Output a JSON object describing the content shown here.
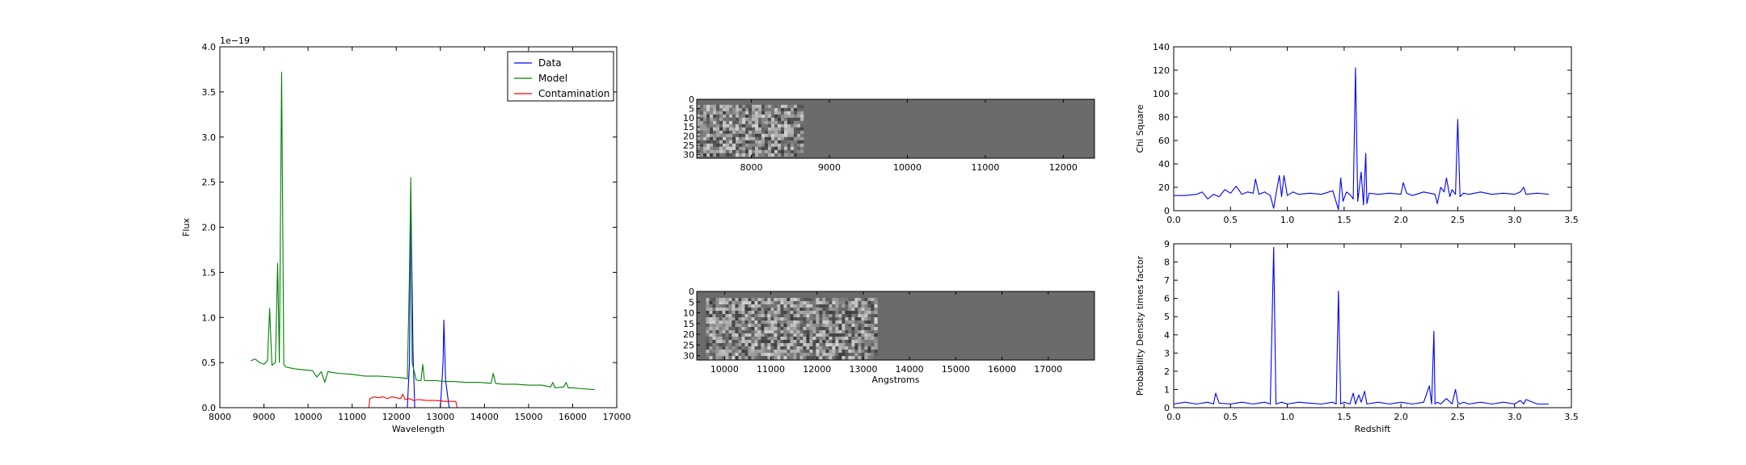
{
  "chart_data": [
    {
      "type": "line",
      "xlabel": "Wavelength",
      "ylabel": "Flux",
      "offset_text": "1e−19",
      "xlim": [
        8000,
        17000
      ],
      "ylim": [
        0,
        4.0
      ],
      "xticks": [
        "8000",
        "9000",
        "10000",
        "11000",
        "12000",
        "13000",
        "14000",
        "15000",
        "16000",
        "17000"
      ],
      "yticks": [
        "0.0",
        "0.5",
        "1.0",
        "1.5",
        "2.0",
        "2.5",
        "3.0",
        "3.5",
        "4.0"
      ],
      "legend": "top-right",
      "grid": false,
      "series": [
        {
          "name": "Data",
          "color": "#0000ff",
          "x": [
            8750,
            11000,
            12250,
            12300,
            12330,
            12380,
            12420,
            13000,
            13060,
            13080,
            13120,
            13200,
            16500
          ],
          "y": [
            0.0,
            0.0,
            0.0,
            0.5,
            2.4,
            0.6,
            0.0,
            0.0,
            0.5,
            0.97,
            0.3,
            0.0,
            0.0
          ]
        },
        {
          "name": "Model",
          "color": "#008000",
          "x": [
            8700,
            8800,
            8900,
            9000,
            9080,
            9130,
            9180,
            9260,
            9310,
            9350,
            9400,
            9450,
            9500,
            9700,
            9900,
            10100,
            10200,
            10300,
            10380,
            10450,
            10550,
            10700,
            11000,
            11300,
            11600,
            11900,
            12150,
            12250,
            12300,
            12330,
            12360,
            12450,
            12500,
            12560,
            12600,
            12640,
            12700,
            12900,
            13100,
            13300,
            13600,
            13900,
            14150,
            14200,
            14250,
            14400,
            14700,
            15000,
            15300,
            15500,
            15550,
            15600,
            15800,
            15850,
            15900,
            16000,
            16200,
            16500
          ],
          "y": [
            0.52,
            0.54,
            0.5,
            0.48,
            0.52,
            1.1,
            0.47,
            0.5,
            1.6,
            0.5,
            3.72,
            0.48,
            0.45,
            0.43,
            0.42,
            0.41,
            0.34,
            0.4,
            0.28,
            0.4,
            0.39,
            0.38,
            0.37,
            0.35,
            0.35,
            0.34,
            0.33,
            0.32,
            1.5,
            2.55,
            0.5,
            0.31,
            0.3,
            0.3,
            0.48,
            0.3,
            0.3,
            0.3,
            0.29,
            0.29,
            0.28,
            0.28,
            0.27,
            0.38,
            0.27,
            0.26,
            0.26,
            0.25,
            0.25,
            0.23,
            0.28,
            0.22,
            0.23,
            0.28,
            0.22,
            0.22,
            0.21,
            0.2
          ]
        },
        {
          "name": "Contamination",
          "color": "#ff0000",
          "x": [
            8750,
            11380,
            11400,
            11500,
            11600,
            11700,
            11800,
            11900,
            12000,
            12100,
            12150,
            12200,
            12300,
            12400,
            12500,
            12700,
            12900,
            13100,
            13200,
            13350,
            13380,
            16500
          ],
          "y": [
            0.0,
            0.0,
            0.1,
            0.12,
            0.11,
            0.12,
            0.1,
            0.12,
            0.11,
            0.1,
            0.15,
            0.09,
            0.1,
            0.08,
            0.09,
            0.08,
            0.08,
            0.07,
            0.07,
            0.07,
            0.0,
            0.0
          ]
        }
      ]
    },
    {
      "type": "heatmap",
      "xlabel": "",
      "ylabel": "",
      "xticks": [
        "8000",
        "9000",
        "10000",
        "11000",
        "12000"
      ],
      "yticks": [
        "0",
        "5",
        "10",
        "15",
        "20",
        "25",
        "30"
      ],
      "xlim": [
        7300,
        12400
      ],
      "ylim": [
        0,
        32
      ],
      "data_xrange": [
        7300,
        8650
      ],
      "background_gray": 0.42
    },
    {
      "type": "heatmap",
      "xlabel": "Angstroms",
      "ylabel": "",
      "xticks": [
        "10000",
        "11000",
        "12000",
        "13000",
        "14000",
        "15000",
        "16000",
        "17000"
      ],
      "yticks": [
        "0",
        "5",
        "10",
        "15",
        "20",
        "25",
        "30"
      ],
      "xlim": [
        9400,
        18000
      ],
      "ylim": [
        0,
        32
      ],
      "data_xrange": [
        9600,
        13300
      ],
      "background_gray": 0.42
    },
    {
      "type": "line",
      "xlabel": "",
      "ylabel": "Chi Square",
      "xlim": [
        0,
        3.5
      ],
      "ylim": [
        0,
        140
      ],
      "xticks": [
        "0.0",
        "0.5",
        "1.0",
        "1.5",
        "2.0",
        "2.5",
        "3.0",
        "3.5"
      ],
      "yticks": [
        "0",
        "20",
        "40",
        "60",
        "80",
        "100",
        "120",
        "140"
      ],
      "series": [
        {
          "color": "#0000ff",
          "x": [
            0.0,
            0.1,
            0.2,
            0.25,
            0.3,
            0.35,
            0.4,
            0.45,
            0.5,
            0.55,
            0.6,
            0.65,
            0.7,
            0.72,
            0.75,
            0.8,
            0.85,
            0.88,
            0.9,
            0.93,
            0.95,
            0.97,
            1.0,
            1.05,
            1.1,
            1.2,
            1.3,
            1.4,
            1.45,
            1.47,
            1.49,
            1.52,
            1.55,
            1.58,
            1.6,
            1.62,
            1.65,
            1.67,
            1.69,
            1.7,
            1.72,
            1.8,
            1.9,
            2.0,
            2.02,
            2.05,
            2.1,
            2.2,
            2.3,
            2.32,
            2.35,
            2.38,
            2.4,
            2.43,
            2.45,
            2.48,
            2.5,
            2.52,
            2.55,
            2.6,
            2.7,
            2.8,
            2.9,
            3.0,
            3.05,
            3.08,
            3.1,
            3.2,
            3.3
          ],
          "y": [
            13,
            13,
            14,
            16,
            10,
            14,
            12,
            18,
            15,
            21,
            14,
            16,
            15,
            27,
            14,
            16,
            13,
            2,
            14,
            30,
            12,
            30,
            13,
            16,
            14,
            15,
            14,
            17,
            1,
            28,
            8,
            16,
            14,
            10,
            122,
            8,
            33,
            5,
            49,
            6,
            15,
            14,
            15,
            14,
            24,
            15,
            13,
            16,
            14,
            6,
            20,
            16,
            28,
            12,
            18,
            14,
            78,
            12,
            15,
            14,
            16,
            14,
            15,
            14,
            16,
            20,
            14,
            15,
            14
          ]
        }
      ]
    },
    {
      "type": "line",
      "xlabel": "Redshift",
      "ylabel": "Probability Density times factor",
      "xlim": [
        0,
        3.5
      ],
      "ylim": [
        0,
        9
      ],
      "xticks": [
        "0.0",
        "0.5",
        "1.0",
        "1.5",
        "2.0",
        "2.5",
        "3.0",
        "3.5"
      ],
      "yticks": [
        "0",
        "1",
        "2",
        "3",
        "4",
        "5",
        "6",
        "7",
        "8",
        "9"
      ],
      "series": [
        {
          "color": "#0000ff",
          "x": [
            0.0,
            0.1,
            0.2,
            0.3,
            0.35,
            0.37,
            0.4,
            0.5,
            0.6,
            0.7,
            0.8,
            0.85,
            0.88,
            0.9,
            0.95,
            1.0,
            1.1,
            1.2,
            1.3,
            1.4,
            1.43,
            1.45,
            1.47,
            1.5,
            1.55,
            1.58,
            1.6,
            1.63,
            1.65,
            1.68,
            1.7,
            1.8,
            1.9,
            2.0,
            2.1,
            2.2,
            2.25,
            2.27,
            2.29,
            2.3,
            2.32,
            2.35,
            2.4,
            2.45,
            2.48,
            2.5,
            2.52,
            2.55,
            2.6,
            2.7,
            2.8,
            2.9,
            3.0,
            3.05,
            3.08,
            3.1,
            3.2,
            3.3
          ],
          "y": [
            0.2,
            0.3,
            0.2,
            0.3,
            0.2,
            0.8,
            0.25,
            0.2,
            0.3,
            0.2,
            0.3,
            0.2,
            8.8,
            0.2,
            0.3,
            0.2,
            0.3,
            0.25,
            0.2,
            0.3,
            0.2,
            6.4,
            0.2,
            0.3,
            0.2,
            0.8,
            0.2,
            0.7,
            0.3,
            0.9,
            0.2,
            0.3,
            0.2,
            0.3,
            0.2,
            0.3,
            1.2,
            0.2,
            4.2,
            0.2,
            0.3,
            0.2,
            0.5,
            0.2,
            1.0,
            0.3,
            0.2,
            0.3,
            0.2,
            0.3,
            0.2,
            0.3,
            0.2,
            0.4,
            0.2,
            0.45,
            0.2,
            0.2
          ]
        }
      ]
    }
  ]
}
